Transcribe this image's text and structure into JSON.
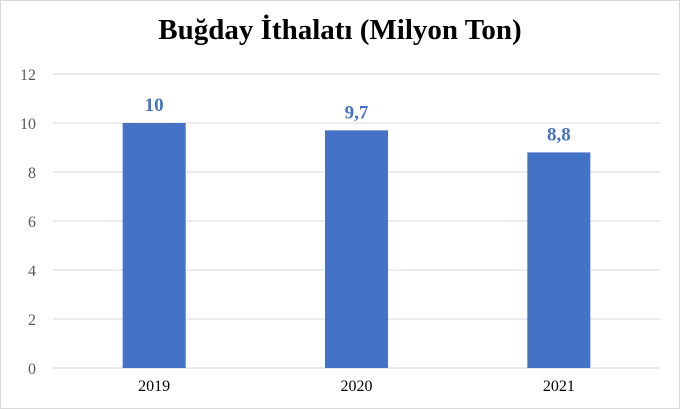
{
  "chart_data": {
    "type": "bar",
    "title": "Buğday İthalatı (Milyon Ton)",
    "categories": [
      "2019",
      "2020",
      "2021"
    ],
    "values": [
      10,
      9.7,
      8.8
    ],
    "data_labels": [
      "10",
      "9,7",
      "8,8"
    ],
    "ylim": [
      0,
      12
    ],
    "yticks": [
      0,
      2,
      4,
      6,
      8,
      10,
      12
    ],
    "grid": true,
    "legend": "none",
    "bar_color": "#4472c4",
    "label_color": "#4472c4",
    "grid_color": "#d9d9d9"
  }
}
